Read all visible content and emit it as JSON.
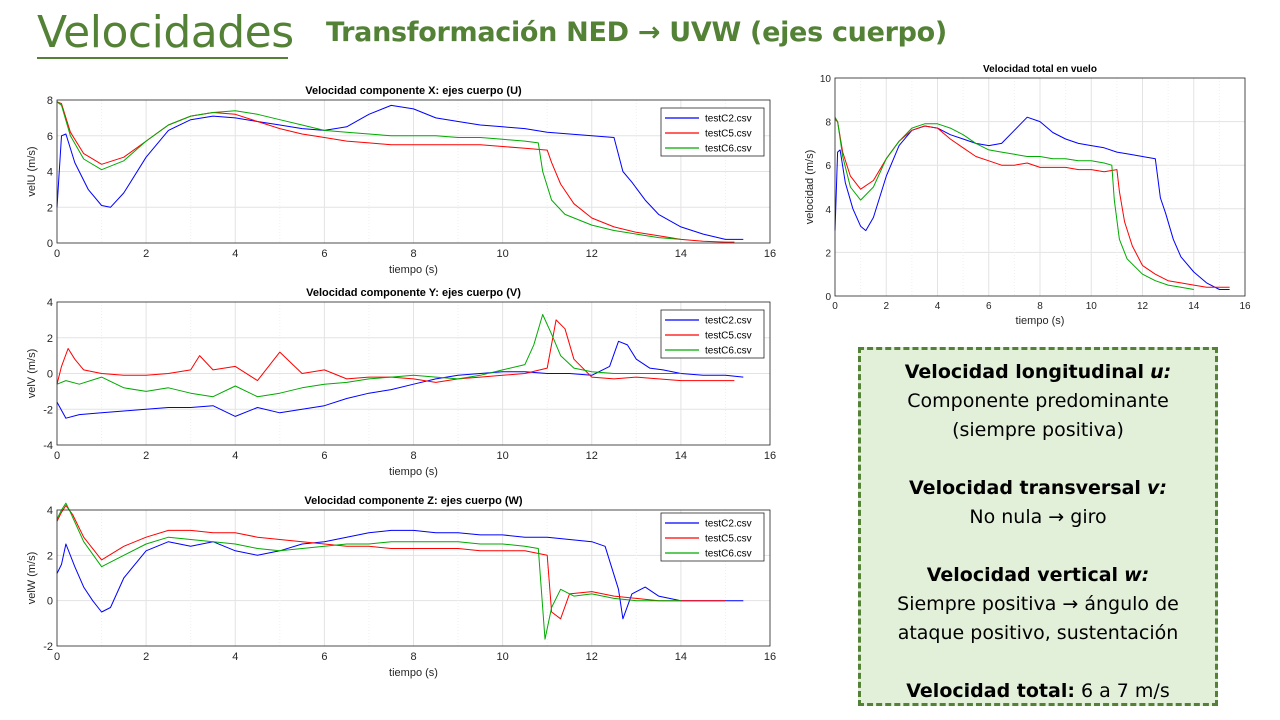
{
  "slide": {
    "title": "Velocidades",
    "subtitle": "Transformación NED → UVW (ejes cuerpo)"
  },
  "colors": {
    "accent": "#538135",
    "testC2": "#0000ff",
    "testC5": "#ff0000",
    "testC6": "#00aa00",
    "box_fill": "#e2efd9"
  },
  "info_box": {
    "u_label": "Velocidad longitudinal",
    "u_var": "u:",
    "u_line1": "Componente predominante",
    "u_line2": "(siempre positiva)",
    "v_label": "Velocidad transversal",
    "v_var": "v:",
    "v_line1": "No nula → giro",
    "w_label": "Velocidad vertical",
    "w_var": "w:",
    "w_line1": "Siempre positiva → ángulo de",
    "w_line2": "ataque positivo, sustentación",
    "total_label": "Velocidad total:",
    "total_value": "6 a 7 m/s"
  },
  "chart_data": [
    {
      "type": "line",
      "title": "Velocidad componente X: ejes cuerpo (U)",
      "xlabel": "tiempo (s)",
      "ylabel": "velU (m/s)",
      "xlim": [
        0,
        16
      ],
      "ylim": [
        0,
        8
      ],
      "xticks": [
        "0",
        "2",
        "4",
        "6",
        "8",
        "10",
        "12",
        "14",
        "16"
      ],
      "yticks": [
        "0",
        "2",
        "4",
        "6",
        "8"
      ],
      "grid": true,
      "legend": "top-right",
      "series": [
        {
          "name": "testC2.csv",
          "x": [
            0,
            0.1,
            0.2,
            0.4,
            0.7,
            1.0,
            1.2,
            1.5,
            2.0,
            2.5,
            3.0,
            3.5,
            4.0,
            4.5,
            5.0,
            5.5,
            6.0,
            6.5,
            7.0,
            7.5,
            8.0,
            8.5,
            9.0,
            9.5,
            10.0,
            10.5,
            11.0,
            11.5,
            12.0,
            12.5,
            12.7,
            12.9,
            13.2,
            13.5,
            14.0,
            14.5,
            15.0,
            15.4
          ],
          "y": [
            2.0,
            6.0,
            6.1,
            4.5,
            3.0,
            2.1,
            2.0,
            2.8,
            4.8,
            6.3,
            6.9,
            7.1,
            7.0,
            6.8,
            6.6,
            6.4,
            6.3,
            6.5,
            7.2,
            7.7,
            7.5,
            7.0,
            6.8,
            6.6,
            6.5,
            6.4,
            6.2,
            6.1,
            6.0,
            5.9,
            4.0,
            3.4,
            2.4,
            1.6,
            0.9,
            0.5,
            0.2,
            0.2
          ]
        },
        {
          "name": "testC5.csv",
          "x": [
            0,
            0.1,
            0.3,
            0.6,
            1.0,
            1.5,
            2.0,
            2.5,
            3.0,
            3.5,
            4.0,
            4.5,
            5.0,
            5.5,
            6.0,
            6.5,
            7.0,
            7.5,
            8.0,
            8.5,
            9.0,
            9.5,
            10.0,
            10.5,
            11.0,
            11.1,
            11.3,
            11.6,
            12.0,
            12.5,
            13.0,
            13.5,
            14.0,
            14.5,
            15.0,
            15.2
          ],
          "y": [
            7.9,
            7.8,
            6.2,
            5.0,
            4.4,
            4.8,
            5.7,
            6.6,
            7.1,
            7.3,
            7.2,
            6.8,
            6.4,
            6.1,
            5.9,
            5.7,
            5.6,
            5.5,
            5.5,
            5.5,
            5.5,
            5.5,
            5.4,
            5.3,
            5.2,
            4.5,
            3.3,
            2.2,
            1.4,
            0.9,
            0.6,
            0.4,
            0.2,
            0.1,
            0.05,
            0.05
          ]
        },
        {
          "name": "testC6.csv",
          "x": [
            0,
            0.1,
            0.3,
            0.6,
            1.0,
            1.5,
            2.0,
            2.5,
            3.0,
            3.5,
            4.0,
            4.5,
            5.0,
            5.5,
            6.0,
            6.5,
            7.0,
            7.5,
            8.0,
            8.5,
            9.0,
            9.5,
            10.0,
            10.5,
            10.8,
            10.9,
            11.1,
            11.4,
            12.0,
            12.5,
            13.0,
            13.5,
            14.0
          ],
          "y": [
            7.9,
            7.7,
            6.0,
            4.7,
            4.1,
            4.6,
            5.7,
            6.6,
            7.1,
            7.3,
            7.4,
            7.2,
            6.9,
            6.6,
            6.3,
            6.2,
            6.1,
            6.0,
            6.0,
            6.0,
            5.9,
            5.9,
            5.8,
            5.7,
            5.6,
            4.0,
            2.4,
            1.6,
            1.0,
            0.7,
            0.5,
            0.3,
            0.2
          ]
        }
      ]
    },
    {
      "type": "line",
      "title": "Velocidad componente Y: ejes cuerpo (V)",
      "xlabel": "tiempo (s)",
      "ylabel": "velV (m/s)",
      "xlim": [
        0,
        16
      ],
      "ylim": [
        -4,
        4
      ],
      "xticks": [
        "0",
        "2",
        "4",
        "6",
        "8",
        "10",
        "12",
        "14",
        "16"
      ],
      "yticks": [
        "-4",
        "-2",
        "0",
        "2",
        "4"
      ],
      "grid": true,
      "legend": "top-right",
      "series": [
        {
          "name": "testC2.csv",
          "x": [
            0,
            0.2,
            0.5,
            1.0,
            1.5,
            2.0,
            2.5,
            3.0,
            3.5,
            4.0,
            4.5,
            5.0,
            5.5,
            6.0,
            6.5,
            7.0,
            7.5,
            8.0,
            8.5,
            9.0,
            9.5,
            10.0,
            10.5,
            11.0,
            11.5,
            12.0,
            12.4,
            12.6,
            12.8,
            13.0,
            13.3,
            13.6,
            14.0,
            14.5,
            15.0,
            15.4
          ],
          "y": [
            -1.6,
            -2.5,
            -2.3,
            -2.2,
            -2.1,
            -2.0,
            -1.9,
            -1.9,
            -1.8,
            -2.4,
            -1.9,
            -2.2,
            -2.0,
            -1.8,
            -1.4,
            -1.1,
            -0.9,
            -0.6,
            -0.3,
            -0.1,
            0.0,
            0.1,
            0.1,
            0.0,
            0.0,
            -0.1,
            0.4,
            1.8,
            1.6,
            0.8,
            0.3,
            0.2,
            0.0,
            -0.1,
            -0.1,
            -0.2
          ]
        },
        {
          "name": "testC5.csv",
          "x": [
            0,
            0.1,
            0.25,
            0.4,
            0.6,
            1.0,
            1.5,
            2.0,
            2.5,
            3.0,
            3.2,
            3.5,
            4.0,
            4.5,
            5.0,
            5.5,
            6.0,
            6.5,
            7.0,
            7.5,
            8.0,
            8.5,
            9.0,
            9.5,
            10.0,
            10.5,
            11.0,
            11.2,
            11.4,
            11.6,
            12.0,
            12.5,
            13.0,
            14.0,
            15.0,
            15.2
          ],
          "y": [
            -0.6,
            0.4,
            1.4,
            0.8,
            0.2,
            0.0,
            -0.1,
            -0.1,
            0.0,
            0.2,
            1.0,
            0.2,
            0.4,
            -0.4,
            1.2,
            0.0,
            0.2,
            -0.3,
            -0.2,
            -0.2,
            -0.3,
            -0.5,
            -0.3,
            -0.2,
            -0.1,
            0.0,
            0.3,
            3.0,
            2.5,
            0.8,
            -0.2,
            -0.3,
            -0.2,
            -0.4,
            -0.4,
            -0.4
          ]
        },
        {
          "name": "testC6.csv",
          "x": [
            0,
            0.2,
            0.5,
            1.0,
            1.5,
            2.0,
            2.5,
            3.0,
            3.5,
            4.0,
            4.5,
            5.0,
            5.5,
            6.0,
            6.5,
            7.0,
            7.5,
            8.0,
            8.5,
            9.0,
            9.5,
            10.0,
            10.5,
            10.7,
            10.9,
            11.1,
            11.3,
            11.6,
            12.0,
            12.5,
            13.0,
            13.5,
            14.0
          ],
          "y": [
            -0.6,
            -0.4,
            -0.6,
            -0.2,
            -0.8,
            -1.0,
            -0.8,
            -1.1,
            -1.3,
            -0.7,
            -1.3,
            -1.1,
            -0.8,
            -0.6,
            -0.5,
            -0.3,
            -0.2,
            -0.1,
            -0.2,
            -0.3,
            -0.1,
            0.2,
            0.5,
            1.6,
            3.3,
            2.2,
            1.0,
            0.3,
            0.1,
            0.0,
            0.0,
            0.0,
            0.0
          ]
        }
      ]
    },
    {
      "type": "line",
      "title": "Velocidad componente Z: ejes cuerpo (W)",
      "xlabel": "tiempo (s)",
      "ylabel": "velW (m/s)",
      "xlim": [
        0,
        16
      ],
      "ylim": [
        -2,
        4
      ],
      "xticks": [
        "0",
        "2",
        "4",
        "6",
        "8",
        "10",
        "12",
        "14",
        "16"
      ],
      "yticks": [
        "-2",
        "0",
        "2",
        "4"
      ],
      "grid": true,
      "legend": "top-right",
      "series": [
        {
          "name": "testC2.csv",
          "x": [
            0,
            0.1,
            0.2,
            0.4,
            0.6,
            0.8,
            1.0,
            1.2,
            1.5,
            2.0,
            2.5,
            3.0,
            3.5,
            4.0,
            4.5,
            5.0,
            5.5,
            6.0,
            6.5,
            7.0,
            7.5,
            8.0,
            8.5,
            9.0,
            9.5,
            10.0,
            10.5,
            11.0,
            11.5,
            12.0,
            12.3,
            12.6,
            12.7,
            12.9,
            13.2,
            13.5,
            14.0,
            14.5,
            15.0,
            15.4
          ],
          "y": [
            1.2,
            1.6,
            2.5,
            1.5,
            0.6,
            0.0,
            -0.5,
            -0.3,
            1.0,
            2.2,
            2.6,
            2.4,
            2.6,
            2.2,
            2.0,
            2.2,
            2.5,
            2.6,
            2.8,
            3.0,
            3.1,
            3.1,
            3.0,
            3.0,
            2.9,
            2.9,
            2.8,
            2.8,
            2.7,
            2.6,
            2.4,
            0.5,
            -0.8,
            0.3,
            0.6,
            0.2,
            0.0,
            0.0,
            0.0,
            0.0
          ]
        },
        {
          "name": "testC5.csv",
          "x": [
            0,
            0.1,
            0.2,
            0.35,
            0.6,
            1.0,
            1.5,
            2.0,
            2.5,
            3.0,
            3.5,
            4.0,
            4.5,
            5.0,
            5.5,
            6.0,
            6.5,
            7.0,
            7.5,
            8.0,
            8.5,
            9.0,
            9.5,
            10.0,
            10.5,
            11.0,
            11.1,
            11.3,
            11.5,
            12.0,
            12.5,
            13.0,
            13.5,
            14.0,
            14.5,
            15.0
          ],
          "y": [
            3.5,
            3.9,
            4.2,
            3.8,
            2.8,
            1.8,
            2.4,
            2.8,
            3.1,
            3.1,
            3.0,
            3.0,
            2.8,
            2.7,
            2.6,
            2.5,
            2.4,
            2.4,
            2.3,
            2.3,
            2.3,
            2.3,
            2.2,
            2.2,
            2.2,
            2.0,
            -0.5,
            -0.8,
            0.3,
            0.4,
            0.2,
            0.1,
            0.0,
            0.0,
            0.0,
            0.0
          ]
        },
        {
          "name": "testC6.csv",
          "x": [
            0,
            0.1,
            0.2,
            0.3,
            0.6,
            1.0,
            1.5,
            2.0,
            2.5,
            3.0,
            3.5,
            4.0,
            4.5,
            5.0,
            5.5,
            6.0,
            6.5,
            7.0,
            7.5,
            8.0,
            8.5,
            9.0,
            9.5,
            10.0,
            10.5,
            10.8,
            10.95,
            11.1,
            11.3,
            11.6,
            12.0,
            12.5,
            13.0,
            13.5,
            14.0
          ],
          "y": [
            3.6,
            4.0,
            4.3,
            3.9,
            2.6,
            1.5,
            2.0,
            2.5,
            2.8,
            2.7,
            2.6,
            2.5,
            2.3,
            2.2,
            2.3,
            2.4,
            2.5,
            2.5,
            2.6,
            2.6,
            2.6,
            2.6,
            2.5,
            2.5,
            2.4,
            2.3,
            -1.7,
            -0.3,
            0.5,
            0.2,
            0.3,
            0.1,
            0.0,
            0.0,
            0.0
          ]
        }
      ]
    },
    {
      "type": "line",
      "title": "Velocidad total en vuelo",
      "xlabel": "tiempo (s)",
      "ylabel": "velocidad (m/s)",
      "xlim": [
        0,
        16
      ],
      "ylim": [
        0,
        10
      ],
      "xticks": [
        "0",
        "2",
        "4",
        "6",
        "8",
        "10",
        "12",
        "14",
        "16"
      ],
      "yticks": [
        "0",
        "2",
        "4",
        "6",
        "8",
        "10"
      ],
      "grid": true,
      "legend": "none",
      "series": [
        {
          "name": "testC2.csv",
          "x": [
            0,
            0.1,
            0.2,
            0.4,
            0.7,
            1.0,
            1.2,
            1.5,
            2.0,
            2.5,
            3.0,
            3.5,
            4.0,
            4.5,
            5.0,
            5.5,
            6.0,
            6.5,
            7.0,
            7.5,
            8.0,
            8.5,
            9.0,
            9.5,
            10.0,
            10.5,
            11.0,
            11.5,
            12.0,
            12.5,
            12.7,
            12.9,
            13.2,
            13.5,
            14.0,
            14.5,
            15.0,
            15.4
          ],
          "y": [
            3.0,
            6.6,
            6.7,
            5.2,
            4.0,
            3.2,
            3.0,
            3.6,
            5.5,
            6.9,
            7.6,
            7.8,
            7.7,
            7.4,
            7.2,
            7.0,
            6.9,
            7.0,
            7.6,
            8.2,
            8.0,
            7.5,
            7.2,
            7.0,
            6.9,
            6.8,
            6.6,
            6.5,
            6.4,
            6.3,
            4.5,
            3.8,
            2.6,
            1.8,
            1.1,
            0.6,
            0.3,
            0.3
          ]
        },
        {
          "name": "testC5.csv",
          "x": [
            0,
            0.1,
            0.3,
            0.6,
            1.0,
            1.5,
            2.0,
            2.5,
            3.0,
            3.5,
            4.0,
            4.5,
            5.0,
            5.5,
            6.0,
            6.5,
            7.0,
            7.5,
            8.0,
            8.5,
            9.0,
            9.5,
            10.0,
            10.5,
            11.0,
            11.1,
            11.3,
            11.6,
            12.0,
            12.5,
            13.0,
            13.5,
            14.0,
            14.5,
            15.0,
            15.4
          ],
          "y": [
            8.1,
            8.0,
            6.6,
            5.5,
            4.9,
            5.3,
            6.3,
            7.1,
            7.6,
            7.8,
            7.7,
            7.2,
            6.8,
            6.4,
            6.2,
            6.0,
            6.0,
            6.1,
            5.9,
            5.9,
            5.9,
            5.8,
            5.8,
            5.7,
            5.8,
            4.8,
            3.4,
            2.3,
            1.4,
            1.0,
            0.7,
            0.6,
            0.5,
            0.4,
            0.4,
            0.4
          ]
        },
        {
          "name": "testC6.csv",
          "x": [
            0,
            0.1,
            0.3,
            0.6,
            1.0,
            1.5,
            2.0,
            2.5,
            3.0,
            3.5,
            4.0,
            4.5,
            5.0,
            5.5,
            6.0,
            6.5,
            7.0,
            7.5,
            8.0,
            8.5,
            9.0,
            9.5,
            10.0,
            10.5,
            10.8,
            10.9,
            11.1,
            11.4,
            12.0,
            12.5,
            13.0,
            13.5,
            14.0
          ],
          "y": [
            8.2,
            8.0,
            6.4,
            5.0,
            4.4,
            5.0,
            6.3,
            7.1,
            7.7,
            7.9,
            7.9,
            7.7,
            7.4,
            7.0,
            6.7,
            6.6,
            6.5,
            6.4,
            6.4,
            6.3,
            6.3,
            6.2,
            6.2,
            6.1,
            6.0,
            4.4,
            2.6,
            1.7,
            1.0,
            0.7,
            0.5,
            0.4,
            0.3
          ]
        }
      ]
    }
  ]
}
